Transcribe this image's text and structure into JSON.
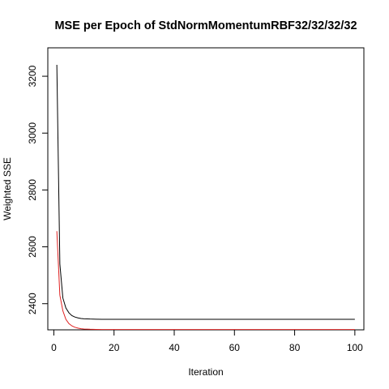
{
  "chart_data": {
    "type": "line",
    "title": "MSE per Epoch of StdNormMomentumRBF32/32/32/32",
    "xlabel": "Iteration",
    "ylabel": "Weighted SSE",
    "xlim": [
      -2,
      103
    ],
    "ylim": [
      2308,
      3300
    ],
    "xticks": [
      0,
      20,
      40,
      60,
      80,
      100
    ],
    "yticks": [
      2400,
      2600,
      2800,
      3000,
      3200
    ],
    "grid": false,
    "legend": "none",
    "series": [
      {
        "color": "#000000",
        "x": [
          1,
          2,
          3,
          4,
          5,
          6,
          7,
          8,
          9,
          10,
          12,
          14,
          16,
          18,
          20,
          25,
          30,
          40,
          50,
          60,
          70,
          80,
          90,
          100
        ],
        "values": [
          3240,
          2540,
          2420,
          2385,
          2368,
          2358,
          2353,
          2350,
          2348,
          2347,
          2346,
          2345.5,
          2345,
          2345,
          2345,
          2345,
          2345,
          2345,
          2345,
          2345,
          2345,
          2345,
          2345,
          2345
        ]
      },
      {
        "color": "#df2020",
        "x": [
          1,
          2,
          3,
          4,
          5,
          6,
          7,
          8,
          9,
          10,
          12,
          14,
          16,
          18,
          20,
          30,
          40,
          50,
          60,
          70,
          80,
          90,
          100
        ],
        "values": [
          2655,
          2430,
          2375,
          2345,
          2330,
          2322,
          2317,
          2314,
          2312,
          2311,
          2310,
          2309.5,
          2309,
          2309,
          2309,
          2309,
          2309,
          2309,
          2309,
          2309,
          2309,
          2309,
          2309
        ]
      }
    ]
  }
}
